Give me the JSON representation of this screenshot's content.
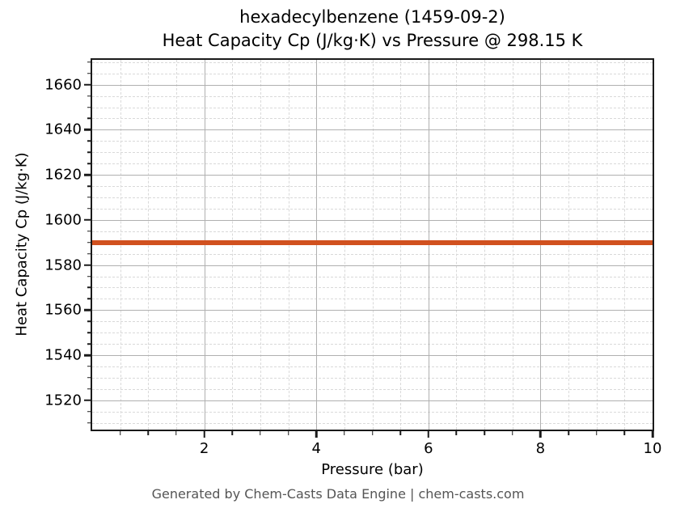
{
  "title": {
    "line1": "hexadecylbenzene (1459-09-2)",
    "line2": "Heat Capacity Cp (J/kg·K) vs Pressure @ 298.15 K"
  },
  "footer": "Generated by Chem-Casts Data Engine | chem-casts.com",
  "colors": {
    "line": "#d1511f",
    "grid_major": "#b0b0b0",
    "grid_minor": "#d9d9d9",
    "spine": "#1a1a1a",
    "footer_text": "#555555",
    "title_text": "#000000"
  },
  "chart_data": {
    "type": "line",
    "title": "hexadecylbenzene (1459-09-2)\nHeat Capacity Cp (J/kg·K) vs Pressure @ 298.15 K",
    "xlabel": "Pressure (bar)",
    "ylabel": "Heat Capacity Cp (J/kg·K)",
    "xlim": [
      0,
      10
    ],
    "ylim": [
      1507,
      1671
    ],
    "x_ticks": [
      2,
      4,
      6,
      8,
      10
    ],
    "y_ticks": [
      1520,
      1540,
      1560,
      1580,
      1600,
      1620,
      1640,
      1660
    ],
    "x_minor_step": 0.5,
    "y_minor_step": 5,
    "grid": true,
    "legend": false,
    "series": [
      {
        "name": "Heat Capacity Cp",
        "color": "#d1511f",
        "x": [
          0,
          10
        ],
        "y": [
          1590,
          1590
        ],
        "constant_value": 1590
      }
    ]
  }
}
